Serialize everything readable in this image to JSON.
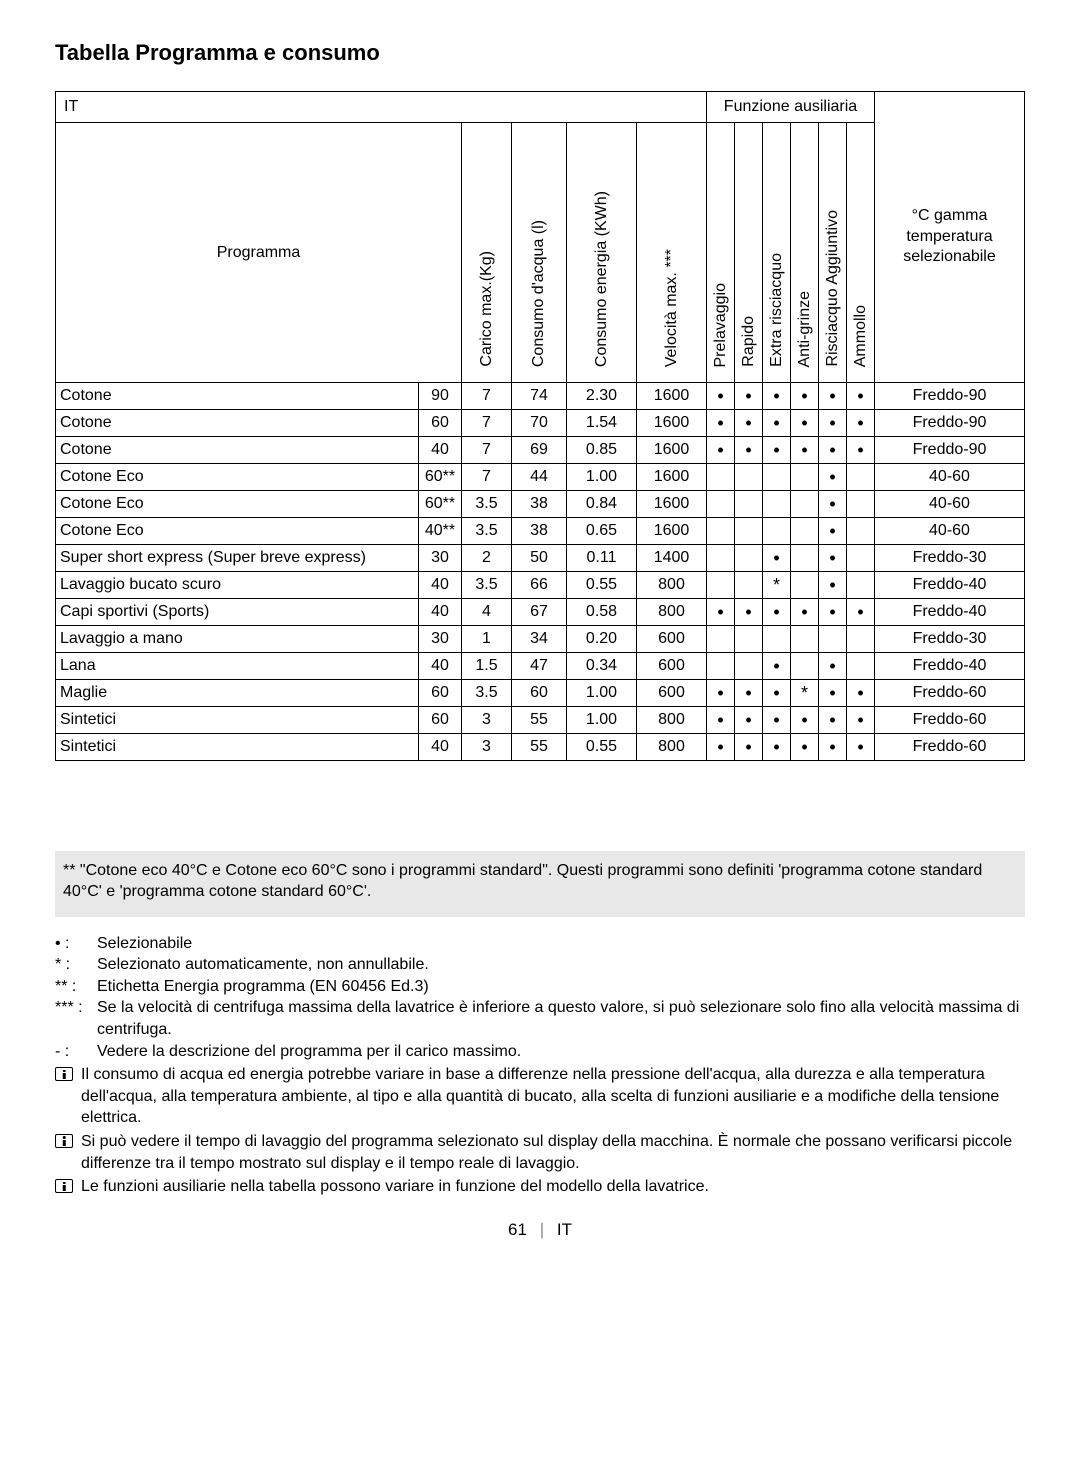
{
  "title": "Tabella Programma e consumo",
  "table": {
    "top_left_label": "IT",
    "aux_header": "Funzione ausiliaria",
    "columns": {
      "programma": "Programma",
      "carico": "Carico max.(Kg)",
      "acqua": "Consumo d'acqua (l)",
      "energia": "Consumo energia (KWh)",
      "velocita": "Velocità max. ***",
      "prelavaggio": "Prelavaggio",
      "rapido": "Rapido",
      "extra": "Extra risciacquo",
      "antigrinze": "Anti-grinze",
      "risciacquo_agg": "Risciacquo Aggiuntivo",
      "ammollo": "Ammollo",
      "temp": "°C gamma temperatura selezionabile"
    },
    "rows": [
      {
        "name": "Cotone",
        "deg": "90",
        "carico": "7",
        "acqua": "74",
        "energia": "2.30",
        "vel": "1600",
        "aux": [
          "•",
          "•",
          "•",
          "•",
          "•",
          "•"
        ],
        "temp": "Freddo-90"
      },
      {
        "name": "Cotone",
        "deg": "60",
        "carico": "7",
        "acqua": "70",
        "energia": "1.54",
        "vel": "1600",
        "aux": [
          "•",
          "•",
          "•",
          "•",
          "•",
          "•"
        ],
        "temp": "Freddo-90"
      },
      {
        "name": "Cotone",
        "deg": "40",
        "carico": "7",
        "acqua": "69",
        "energia": "0.85",
        "vel": "1600",
        "aux": [
          "•",
          "•",
          "•",
          "•",
          "•",
          "•"
        ],
        "temp": "Freddo-90"
      },
      {
        "name": "Cotone Eco",
        "deg": "60**",
        "carico": "7",
        "acqua": "44",
        "energia": "1.00",
        "vel": "1600",
        "aux": [
          "",
          "",
          "",
          "",
          "•",
          ""
        ],
        "temp": "40-60"
      },
      {
        "name": "Cotone Eco",
        "deg": "60**",
        "carico": "3.5",
        "acqua": "38",
        "energia": "0.84",
        "vel": "1600",
        "aux": [
          "",
          "",
          "",
          "",
          "•",
          ""
        ],
        "temp": "40-60"
      },
      {
        "name": "Cotone Eco",
        "deg": "40**",
        "carico": "3.5",
        "acqua": "38",
        "energia": "0.65",
        "vel": "1600",
        "aux": [
          "",
          "",
          "",
          "",
          "•",
          ""
        ],
        "temp": "40-60"
      },
      {
        "name": "Super short express (Super breve express)",
        "deg": "30",
        "carico": "2",
        "acqua": "50",
        "energia": "0.11",
        "vel": "1400",
        "aux": [
          "",
          "",
          "•",
          "",
          "•",
          ""
        ],
        "temp": "Freddo-30"
      },
      {
        "name": "Lavaggio bucato scuro",
        "deg": "40",
        "carico": "3.5",
        "acqua": "66",
        "energia": "0.55",
        "vel": "800",
        "aux": [
          "",
          "",
          "*",
          "",
          "•",
          ""
        ],
        "temp": "Freddo-40"
      },
      {
        "name": "Capi sportivi (Sports)",
        "deg": "40",
        "carico": "4",
        "acqua": "67",
        "energia": "0.58",
        "vel": "800",
        "aux": [
          "•",
          "•",
          "•",
          "•",
          "•",
          "•"
        ],
        "temp": "Freddo-40"
      },
      {
        "name": "Lavaggio a mano",
        "deg": "30",
        "carico": "1",
        "acqua": "34",
        "energia": "0.20",
        "vel": "600",
        "aux": [
          "",
          "",
          "",
          "",
          "",
          ""
        ],
        "temp": "Freddo-30"
      },
      {
        "name": "Lana",
        "deg": "40",
        "carico": "1.5",
        "acqua": "47",
        "energia": "0.34",
        "vel": "600",
        "aux": [
          "",
          "",
          "•",
          "",
          "•",
          ""
        ],
        "temp": "Freddo-40"
      },
      {
        "name": "Maglie",
        "deg": "60",
        "carico": "3.5",
        "acqua": "60",
        "energia": "1.00",
        "vel": "600",
        "aux": [
          "•",
          "•",
          "•",
          "*",
          "•",
          "•"
        ],
        "temp": "Freddo-60"
      },
      {
        "name": "Sintetici",
        "deg": "60",
        "carico": "3",
        "acqua": "55",
        "energia": "1.00",
        "vel": "800",
        "aux": [
          "•",
          "•",
          "•",
          "•",
          "•",
          "•"
        ],
        "temp": "Freddo-60"
      },
      {
        "name": "Sintetici",
        "deg": "40",
        "carico": "3",
        "acqua": "55",
        "energia": "0.55",
        "vel": "800",
        "aux": [
          "•",
          "•",
          "•",
          "•",
          "•",
          "•"
        ],
        "temp": "Freddo-60"
      }
    ]
  },
  "note_boxed": "** \"Cotone eco 40°C e Cotone eco 60°C sono i programmi standard\". Questi programmi sono definiti 'programma cotone standard 40°C' e 'programma cotone standard 60°C'.",
  "legend": [
    {
      "sym": "•",
      "text": "Selezionabile"
    },
    {
      "sym": "*",
      "text": "Selezionato automaticamente, non annullabile."
    },
    {
      "sym": "**",
      "text": "Etichetta Energia programma (EN 60456 Ed.3)"
    },
    {
      "sym": "***",
      "text": "Se la velocità di centrifuga massima della lavatrice è inferiore a questo valore, si può selezionare solo fino alla velocità massima di centrifuga."
    },
    {
      "sym": "-",
      "text": "Vedere la descrizione del programma per il carico massimo."
    }
  ],
  "info_notes": [
    "Il consumo di acqua ed energia potrebbe variare in base a differenze nella pressione dell'acqua, alla durezza e alla temperatura dell'acqua, alla temperatura ambiente, al tipo e alla quantità di bucato, alla scelta di funzioni ausiliarie e a modifiche della tensione elettrica.",
    "Si può vedere il tempo di lavaggio del programma selezionato sul display della macchina. È normale che possano verificarsi piccole differenze tra il tempo mostrato sul display e il tempo reale di lavaggio.",
    "Le funzioni ausiliarie nella tabella possono variare in funzione del modello della lavatrice."
  ],
  "footer": {
    "page": "61",
    "lang": "IT"
  }
}
